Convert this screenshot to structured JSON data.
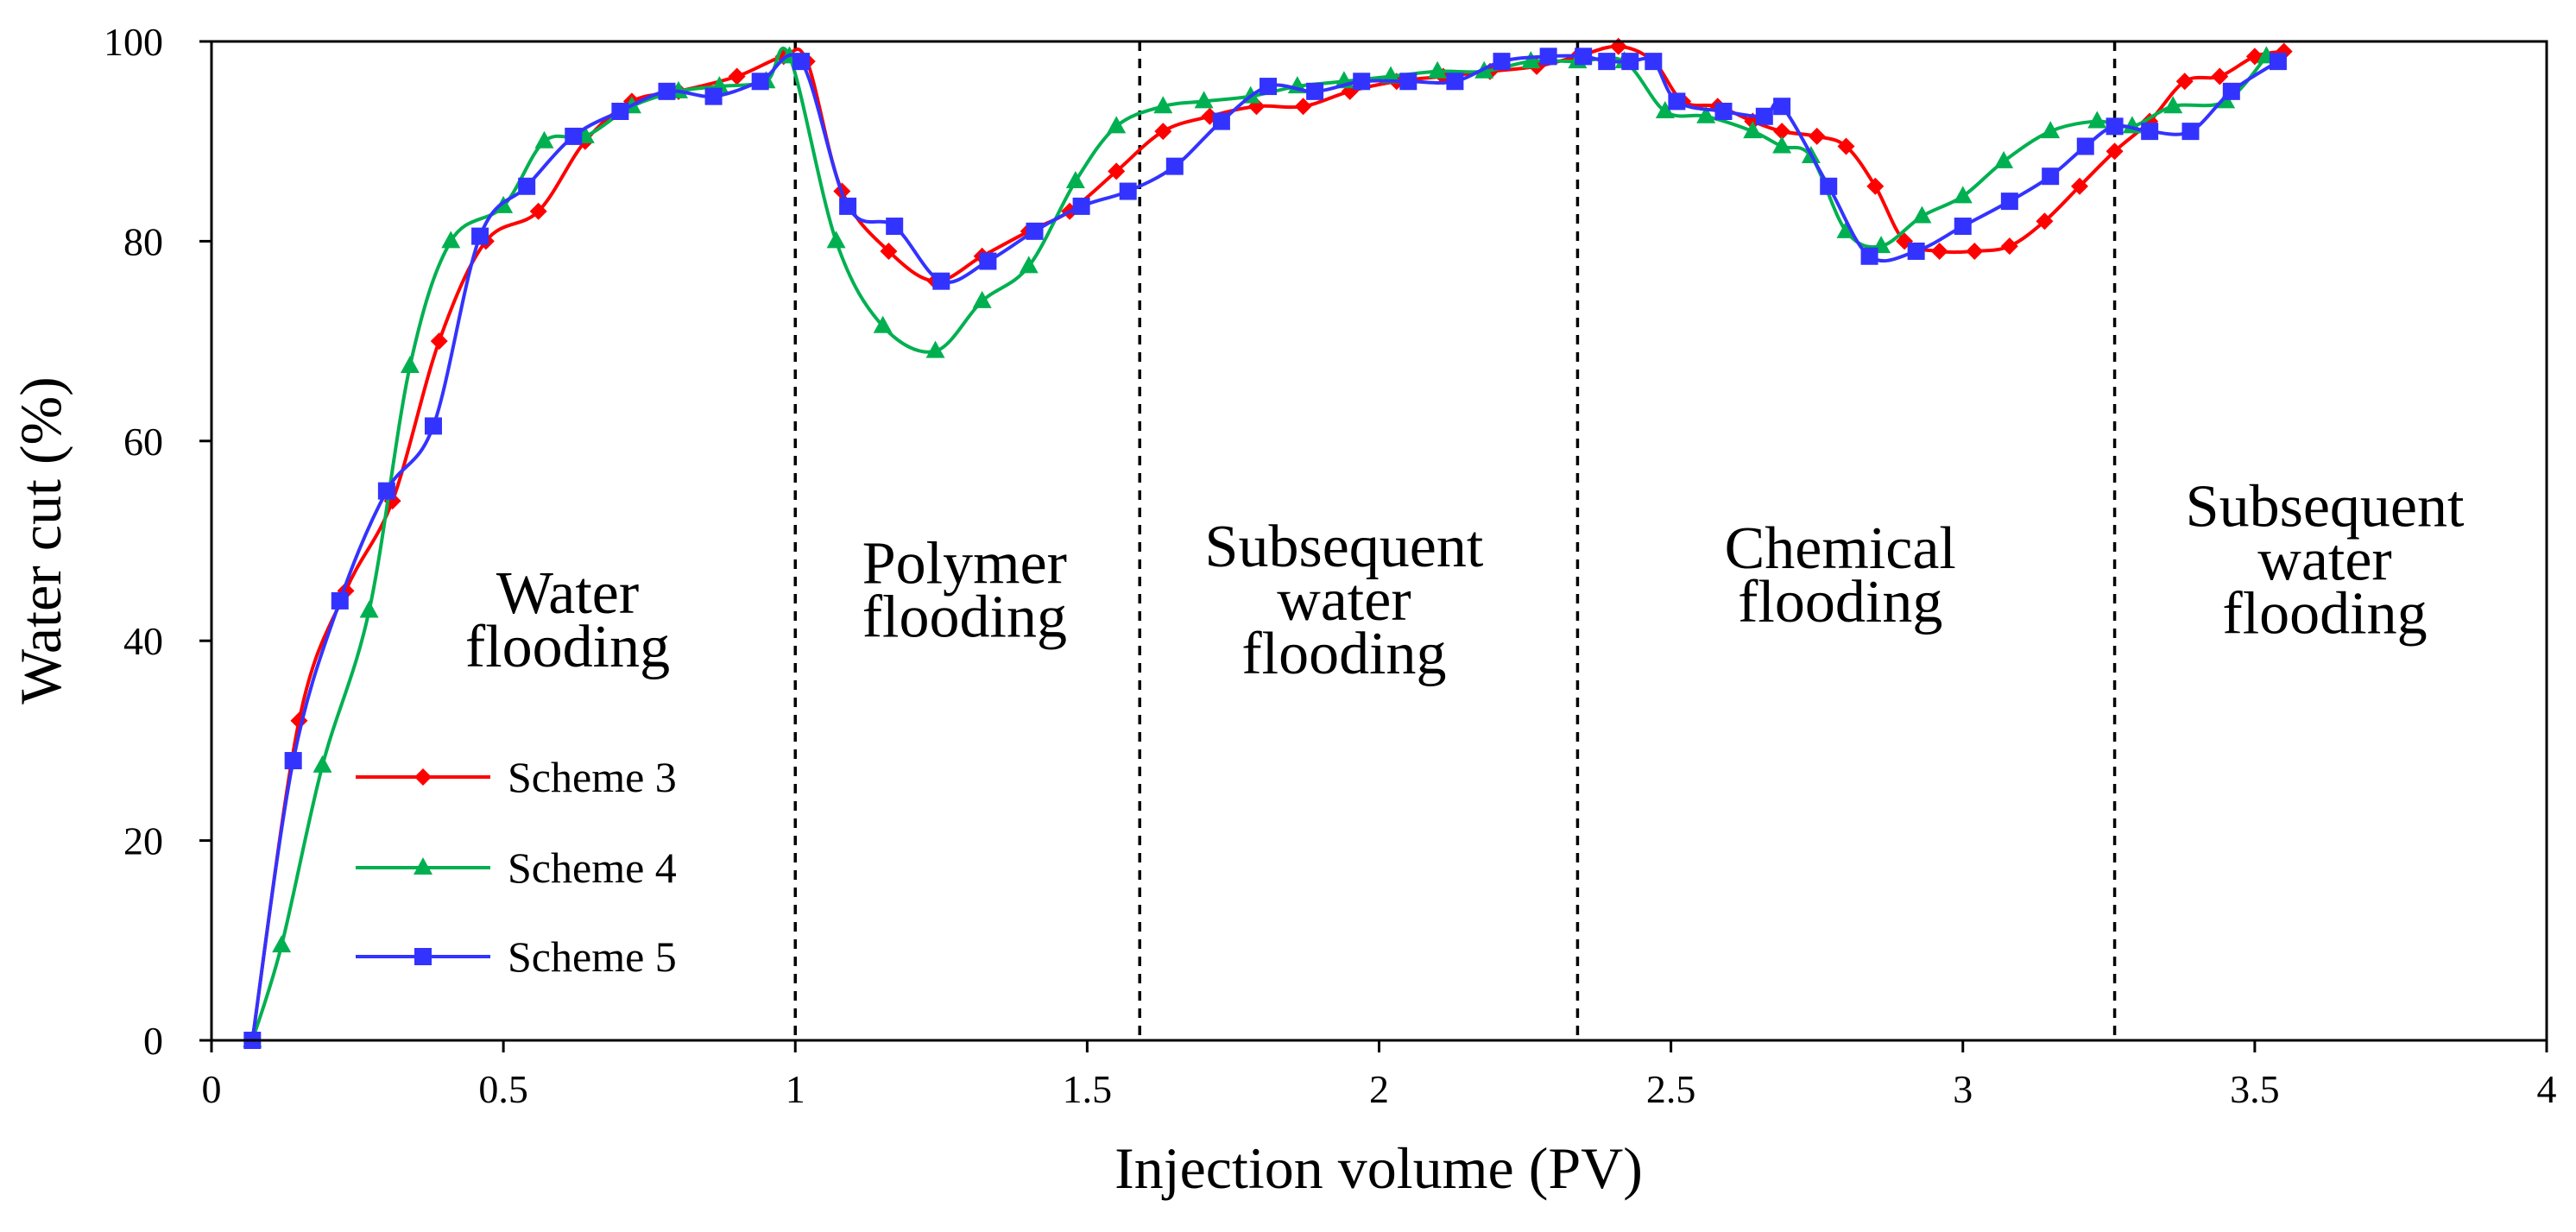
{
  "chart_data": {
    "type": "line",
    "xlabel": "Injection volume (PV)",
    "ylabel": "Water cut (%)",
    "xlim": [
      0,
      4
    ],
    "ylim": [
      0,
      100
    ],
    "xticks": [
      "0",
      "0.5",
      "1",
      "1.5",
      "2",
      "2.5",
      "3",
      "3.5",
      "4"
    ],
    "xtick_values": [
      0,
      0.5,
      1,
      1.5,
      2,
      2.5,
      3,
      3.5,
      4
    ],
    "yticks": [
      "0",
      "20",
      "40",
      "60",
      "80",
      "100"
    ],
    "ytick_values": [
      0,
      20,
      40,
      60,
      80,
      100
    ],
    "stage_boundaries": [
      1.0,
      1.59,
      2.34,
      3.26
    ],
    "stages": [
      {
        "lines": [
          "Water",
          "flooding"
        ],
        "x": 0.61,
        "y": 42
      },
      {
        "lines": [
          "Polymer",
          "flooding"
        ],
        "x": 1.29,
        "y": 45
      },
      {
        "lines": [
          "Subsequent",
          "water",
          "flooding"
        ],
        "x": 1.94,
        "y": 44
      },
      {
        "lines": [
          "Chemical",
          "flooding"
        ],
        "x": 2.79,
        "y": 46.5
      },
      {
        "lines": [
          "Subsequent",
          "water",
          "flooding"
        ],
        "x": 3.62,
        "y": 48
      }
    ],
    "legend": {
      "position": "lower-left"
    },
    "series": [
      {
        "name": "Scheme 3",
        "color": "#ff0000",
        "marker": "diamond",
        "x": [
          0.07,
          0.15,
          0.23,
          0.31,
          0.39,
          0.47,
          0.56,
          0.64,
          0.72,
          0.8,
          0.9,
          0.98,
          1.02,
          1.08,
          1.16,
          1.24,
          1.32,
          1.4,
          1.47,
          1.55,
          1.63,
          1.71,
          1.79,
          1.87,
          1.95,
          2.03,
          2.11,
          2.19,
          2.27,
          2.34,
          2.41,
          2.47,
          2.52,
          2.58,
          2.64,
          2.69,
          2.75,
          2.8,
          2.85,
          2.9,
          2.96,
          3.02,
          3.08,
          3.14,
          3.2,
          3.26,
          3.32,
          3.38,
          3.44,
          3.5,
          3.55
        ],
        "y": [
          0,
          32,
          45,
          54,
          70,
          80,
          83,
          90,
          94,
          95,
          96.5,
          98.5,
          98,
          85,
          79,
          76,
          78.5,
          81,
          83,
          87,
          91,
          92.5,
          93.5,
          93.5,
          95,
          96,
          96.5,
          97,
          97.5,
          98.5,
          99.5,
          98,
          94,
          93.5,
          92,
          91,
          90.5,
          89.5,
          85.5,
          80,
          79,
          79,
          79.5,
          82,
          85.5,
          89,
          92,
          96,
          96.5,
          98.5,
          99
        ]
      },
      {
        "name": "Scheme 4",
        "color": "#00b050",
        "marker": "triangle",
        "x": [
          0.07,
          0.12,
          0.19,
          0.27,
          0.34,
          0.41,
          0.5,
          0.57,
          0.64,
          0.72,
          0.8,
          0.87,
          0.95,
          0.99,
          1.07,
          1.15,
          1.24,
          1.32,
          1.4,
          1.48,
          1.55,
          1.63,
          1.7,
          1.78,
          1.86,
          1.94,
          2.02,
          2.1,
          2.18,
          2.26,
          2.34,
          2.42,
          2.49,
          2.56,
          2.64,
          2.69,
          2.74,
          2.8,
          2.86,
          2.93,
          3.0,
          3.07,
          3.15,
          3.23,
          3.29,
          3.36,
          3.45,
          3.52
        ],
        "y": [
          0,
          9.5,
          27.5,
          43,
          67.5,
          80,
          83.5,
          90,
          90.5,
          93.5,
          95,
          95.5,
          96,
          98.5,
          80,
          71.5,
          69,
          74,
          77.5,
          86,
          91.5,
          93.5,
          94,
          94.5,
          95.5,
          96,
          96.5,
          97,
          97,
          98,
          98,
          98,
          93,
          92.5,
          91,
          89.5,
          88.5,
          81,
          79.5,
          82.5,
          84.5,
          88,
          91,
          92,
          91.5,
          93.5,
          94,
          98.5
        ]
      },
      {
        "name": "Scheme 5",
        "color": "#3333ff",
        "marker": "square",
        "x": [
          0.07,
          0.14,
          0.22,
          0.3,
          0.38,
          0.46,
          0.54,
          0.62,
          0.7,
          0.78,
          0.86,
          0.94,
          1.01,
          1.09,
          1.17,
          1.25,
          1.33,
          1.41,
          1.49,
          1.57,
          1.65,
          1.73,
          1.81,
          1.89,
          1.97,
          2.05,
          2.13,
          2.21,
          2.29,
          2.35,
          2.39,
          2.43,
          2.47,
          2.51,
          2.59,
          2.66,
          2.69,
          2.77,
          2.84,
          2.92,
          3.0,
          3.08,
          3.15,
          3.21,
          3.26,
          3.32,
          3.39,
          3.46,
          3.54
        ],
        "y": [
          0,
          28,
          44,
          55,
          61.5,
          80.5,
          85.5,
          90.5,
          93,
          95,
          94.5,
          96,
          98,
          83.5,
          81.5,
          76,
          78,
          81,
          83.5,
          85,
          87.5,
          92,
          95.5,
          95,
          96,
          96,
          96,
          98,
          98.5,
          98.5,
          98,
          98,
          98,
          94,
          93,
          92.5,
          93.5,
          85.5,
          78.5,
          79,
          81.5,
          84,
          86.5,
          89.5,
          91.5,
          91,
          91,
          95,
          98
        ]
      }
    ]
  }
}
